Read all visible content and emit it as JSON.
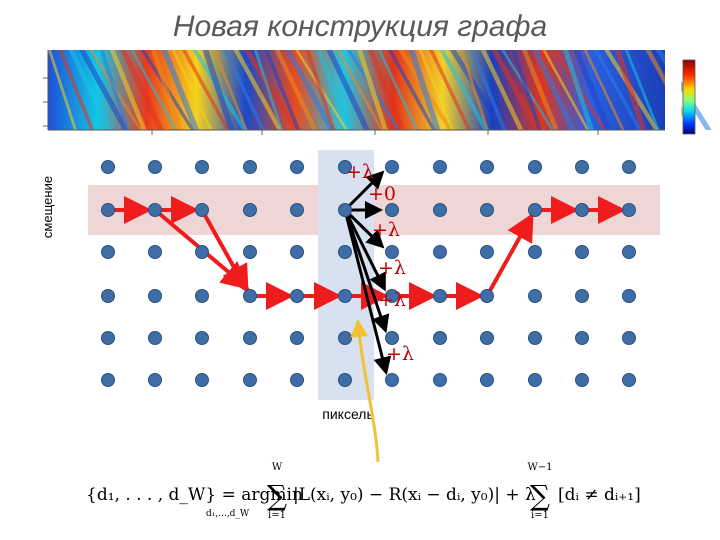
{
  "title": "Новая конструкция графа",
  "axis_label_offset": "смещение",
  "pixel_label": "пиксель",
  "cost_labels": [
    "+λ",
    "+0",
    "+λ",
    "+λ",
    "+λ",
    "+λ"
  ],
  "colors": {
    "title": "#595959",
    "node": "#3f6ea6",
    "path": "#ee1c1c",
    "candidate_arrow": "#000000",
    "pointer_arrow": "#f1c232",
    "row_highlight": "#efd6d6",
    "column_highlight": "#d7e1ef",
    "cost_text": "#c00000"
  },
  "grid": {
    "columns": 12,
    "rows": 6,
    "highlight_row": 1,
    "highlight_column": 5
  },
  "path_nodes": [
    [
      0,
      1
    ],
    [
      1,
      1
    ],
    [
      2,
      1
    ],
    [
      3,
      3
    ],
    [
      4,
      3
    ],
    [
      5,
      3
    ],
    [
      6,
      3
    ],
    [
      7,
      3
    ],
    [
      8,
      3
    ],
    [
      9,
      1
    ],
    [
      10,
      1
    ],
    [
      11,
      1
    ]
  ],
  "candidate_targets": [
    [
      6,
      0
    ],
    [
      6,
      1
    ],
    [
      6,
      2
    ],
    [
      6,
      3
    ],
    [
      6,
      4
    ],
    [
      6,
      5
    ]
  ],
  "formula": {
    "lhs": "{d₁, . . . , d_W} = argmin",
    "argmin_sub": "d₁,...,d_W",
    "sum1_top": "W",
    "sum1_bottom": "i=1",
    "term1": "|L(xᵢ, y₀) − R(xᵢ − dᵢ, y₀)| + λ",
    "sum2_top": "W−1",
    "sum2_bottom": "i=1",
    "term2": "[dᵢ ≠ dᵢ₊₁]"
  }
}
